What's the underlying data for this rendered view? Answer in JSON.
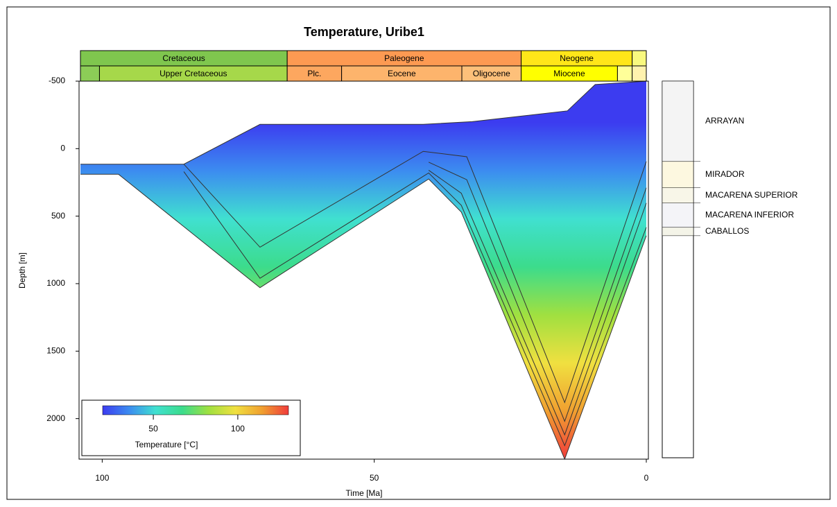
{
  "chart_data": {
    "type": "burial_history",
    "title": "Temperature, Uribe1",
    "x_label": "Time [Ma]",
    "y_label": "Depth [m]",
    "xlim": [
      104,
      0
    ],
    "ylim": [
      -500,
      2300
    ],
    "xticks": [
      100,
      50,
      0
    ],
    "yticks": [
      -500,
      0,
      500,
      1000,
      1500,
      2000
    ],
    "line_color": "#333333",
    "periods": [
      {
        "name": "Cretaceous",
        "start": 104,
        "end": 66,
        "color": "#7fc64e"
      },
      {
        "name": "Paleogene",
        "start": 66,
        "end": 23,
        "color": "#fd9a52"
      },
      {
        "name": "Neogene",
        "start": 23,
        "end": 2.6,
        "color": "#ffe619"
      },
      {
        "name": null,
        "start": 2.6,
        "end": 0,
        "color": "#f9f97f"
      }
    ],
    "epochs": [
      {
        "name": null,
        "start": 104,
        "end": 100.5,
        "color": "#8ccd57"
      },
      {
        "name": "Upper Cretaceous",
        "start": 100.5,
        "end": 66,
        "color": "#a6d84a"
      },
      {
        "name": "Plc.",
        "start": 66,
        "end": 56,
        "color": "#fda75f"
      },
      {
        "name": "Eocene",
        "start": 56,
        "end": 33.9,
        "color": "#fdb46c"
      },
      {
        "name": "Oligocene",
        "start": 33.9,
        "end": 23,
        "color": "#fdc07a"
      },
      {
        "name": "Miocene",
        "start": 23,
        "end": 5.3,
        "color": "#ffff00"
      },
      {
        "name": null,
        "start": 5.3,
        "end": 2.6,
        "color": "#ffff99"
      },
      {
        "name": null,
        "start": 2.6,
        "end": 0,
        "color": "#fff2ae"
      }
    ],
    "horizons": [
      {
        "x": [
          104,
          85,
          71,
          41,
          32,
          14.5,
          9.4,
          0
        ],
        "values": [
          115,
          115,
          -180,
          -180,
          -200,
          -280,
          -475,
          -500
        ]
      },
      {
        "x": [
          85,
          71,
          41,
          33,
          15,
          0
        ],
        "values": [
          115,
          730,
          20,
          60,
          1880,
          95
        ]
      },
      {
        "x": [
          40,
          33,
          15,
          0
        ],
        "values": [
          100,
          230,
          2020,
          290
        ]
      },
      {
        "x": [
          40,
          34,
          15,
          0
        ],
        "values": [
          160,
          330,
          2120,
          403
        ]
      },
      {
        "x": [
          85,
          71,
          40,
          34,
          15,
          0
        ],
        "values": [
          170,
          960,
          180,
          420,
          2200,
          583
        ]
      },
      {
        "x": [
          104,
          97,
          71,
          40,
          34,
          15,
          0
        ],
        "values": [
          190,
          190,
          1030,
          225,
          470,
          2300,
          645
        ]
      }
    ],
    "formations": [
      {
        "name": "ARRAYAN",
        "top": -500,
        "base": 95
      },
      {
        "name": "MIRADOR",
        "top": 95,
        "base": 290
      },
      {
        "name": "MACARENA SUPERIOR",
        "top": 290,
        "base": 403
      },
      {
        "name": "MACARENA INFERIOR",
        "top": 403,
        "base": 583
      },
      {
        "name": "CABALLOS",
        "top": 583,
        "base": 645
      }
    ],
    "colorbar": {
      "label": "Temperature [°C]",
      "range": [
        20,
        130
      ],
      "ticks": [
        50,
        100
      ],
      "colors": [
        "#3c3cf0",
        "#3c8cf0",
        "#40e0d0",
        "#3cdc8c",
        "#a0e040",
        "#f0e040",
        "#f0a030",
        "#f03c3c"
      ]
    }
  }
}
